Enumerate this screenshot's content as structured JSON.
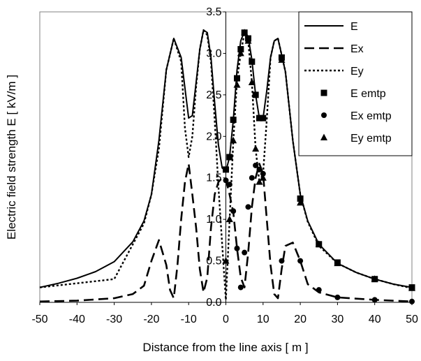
{
  "chart_data": {
    "type": "line",
    "title": "",
    "xlabel": "Distance from the line axis [ m ]",
    "ylabel": "Electric field strength E [ kV/m ]",
    "xlim": [
      -50,
      50
    ],
    "ylim": [
      0,
      3.5
    ],
    "x_ticks": [
      "-50",
      "-40",
      "-30",
      "-20",
      "-10",
      "0",
      "10",
      "20",
      "30",
      "40",
      "50"
    ],
    "y_ticks": [
      "0.0",
      "0.5",
      "1.0",
      "1.5",
      "2.0",
      "2.5",
      "3.0",
      "3.5"
    ],
    "grid": false,
    "legend_position": "top-right",
    "series": [
      {
        "name": "E",
        "style": "solid",
        "x": [
          -50,
          -45,
          -40,
          -35,
          -30,
          -25,
          -22,
          -20,
          -18,
          -16,
          -14,
          -12,
          -10,
          -9,
          -8,
          -7,
          -6,
          -5,
          -4,
          -3,
          -2,
          -1,
          0,
          1,
          2,
          3,
          4,
          5,
          6,
          7,
          8,
          9,
          10,
          11,
          12,
          13,
          14,
          16,
          18,
          20,
          22,
          25,
          30,
          35,
          40,
          45,
          50
        ],
        "values": [
          0.18,
          0.23,
          0.29,
          0.37,
          0.49,
          0.73,
          0.98,
          1.3,
          1.95,
          2.8,
          3.18,
          2.95,
          2.22,
          2.25,
          2.65,
          3.05,
          3.28,
          3.25,
          2.95,
          2.4,
          1.9,
          1.62,
          1.58,
          1.75,
          2.2,
          2.8,
          3.15,
          3.27,
          3.2,
          2.92,
          2.5,
          2.22,
          2.22,
          2.55,
          2.95,
          3.15,
          3.18,
          2.78,
          1.95,
          1.3,
          0.98,
          0.7,
          0.47,
          0.36,
          0.28,
          0.22,
          0.18
        ]
      },
      {
        "name": "Ex",
        "style": "dashed",
        "x": [
          -50,
          -40,
          -30,
          -25,
          -22,
          -20,
          -18,
          -16,
          -15,
          -14,
          -13,
          -12,
          -11,
          -10,
          -9,
          -8,
          -7,
          -6,
          -5,
          -4,
          -3,
          -2,
          -1,
          0,
          1,
          2,
          3,
          4,
          5,
          6,
          7,
          8,
          9,
          10,
          11,
          12,
          13,
          14,
          15,
          16,
          18,
          20,
          22,
          25,
          30,
          40,
          50
        ],
        "values": [
          0.01,
          0.02,
          0.05,
          0.1,
          0.2,
          0.5,
          0.75,
          0.45,
          0.15,
          0.05,
          0.45,
          1.0,
          1.45,
          1.67,
          1.3,
          0.9,
          0.4,
          0.12,
          0.3,
          0.9,
          1.3,
          1.45,
          1.5,
          1.48,
          1.3,
          1.08,
          0.65,
          0.3,
          0.18,
          0.6,
          1.15,
          1.5,
          1.67,
          1.55,
          1.0,
          0.45,
          0.1,
          0.05,
          0.4,
          0.68,
          0.72,
          0.5,
          0.22,
          0.12,
          0.06,
          0.03,
          0.01
        ]
      },
      {
        "name": "Ey",
        "style": "dotted",
        "x": [
          -50,
          -40,
          -30,
          -25,
          -22,
          -20,
          -18,
          -16,
          -14,
          -12,
          -11,
          -10,
          -9,
          -8,
          -7,
          -6,
          -5,
          -4,
          -3,
          -2,
          -1,
          0,
          1,
          2,
          3,
          4,
          5,
          6,
          7,
          8,
          9,
          10,
          11,
          12,
          13,
          14,
          16,
          18,
          20,
          22,
          25,
          30,
          35,
          40,
          45,
          50
        ],
        "values": [
          0.18,
          0.23,
          0.28,
          0.7,
          0.95,
          1.3,
          1.85,
          2.8,
          3.18,
          2.9,
          2.1,
          1.75,
          2.0,
          2.6,
          3.05,
          3.28,
          3.22,
          2.9,
          2.2,
          1.4,
          0.7,
          0.03,
          0.98,
          1.95,
          2.68,
          3.0,
          3.25,
          3.15,
          2.65,
          1.85,
          1.45,
          1.55,
          2.2,
          2.95,
          3.15,
          3.18,
          2.78,
          1.95,
          1.3,
          0.97,
          0.68,
          0.47,
          0.36,
          0.28,
          0.22,
          0.17
        ]
      },
      {
        "name": "E emtp",
        "style": "marker-square",
        "x": [
          0,
          1,
          2,
          3,
          4,
          5,
          6,
          7,
          8,
          9,
          10,
          15,
          20,
          25,
          30,
          40,
          50
        ],
        "values": [
          1.6,
          1.75,
          2.2,
          2.7,
          3.05,
          3.25,
          3.18,
          2.9,
          2.5,
          2.22,
          2.22,
          2.95,
          1.25,
          0.7,
          0.48,
          0.28,
          0.18
        ]
      },
      {
        "name": "Ex emtp",
        "style": "marker-circle",
        "x": [
          0,
          1,
          2,
          3,
          4,
          5,
          6,
          7,
          8,
          9,
          10,
          15,
          20,
          25,
          30,
          40,
          50
        ],
        "values": [
          1.47,
          1.42,
          1.1,
          0.65,
          0.18,
          0.6,
          1.15,
          1.5,
          1.65,
          1.6,
          1.55,
          0.5,
          0.5,
          0.15,
          0.06,
          0.03,
          0.01
        ]
      },
      {
        "name": "Ey emtp",
        "style": "marker-triangle",
        "x": [
          0,
          1,
          2,
          3,
          4,
          5,
          6,
          7,
          8,
          9,
          10,
          15,
          20,
          25,
          30,
          40,
          50
        ],
        "values": [
          0.5,
          1.0,
          1.95,
          2.62,
          3.0,
          3.25,
          3.15,
          2.65,
          1.85,
          1.45,
          1.5,
          2.92,
          1.2,
          0.7,
          0.47,
          0.28,
          0.17
        ]
      }
    ]
  }
}
